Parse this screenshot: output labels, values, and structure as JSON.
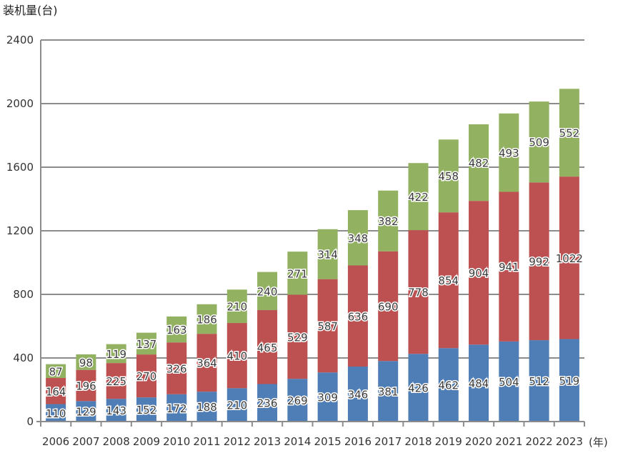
{
  "chart_data": {
    "type": "bar",
    "stacked": true,
    "title": "",
    "ylabel": "装机量(台)",
    "xlabel": "(年)",
    "ylim": [
      0,
      2400
    ],
    "yticks": [
      0,
      400,
      800,
      1200,
      1600,
      2000,
      2400
    ],
    "grid": true,
    "categories": [
      "2006",
      "2007",
      "2008",
      "2009",
      "2010",
      "2011",
      "2012",
      "2013",
      "2014",
      "2015",
      "2016",
      "2017",
      "2018",
      "2019",
      "2020",
      "2021",
      "2022",
      "2023"
    ],
    "series": [
      {
        "color": "#4f7db5",
        "values": [
          110,
          129,
          143,
          152,
          172,
          188,
          210,
          236,
          269,
          309,
          346,
          381,
          426,
          462,
          484,
          504,
          512,
          519
        ]
      },
      {
        "color": "#bd5050",
        "values": [
          164,
          196,
          225,
          270,
          326,
          364,
          410,
          465,
          529,
          587,
          636,
          690,
          778,
          854,
          904,
          941,
          992,
          1022
        ]
      },
      {
        "color": "#92b262",
        "values": [
          87,
          98,
          119,
          137,
          163,
          186,
          210,
          240,
          271,
          314,
          348,
          382,
          422,
          458,
          482,
          493,
          509,
          552
        ]
      }
    ]
  }
}
